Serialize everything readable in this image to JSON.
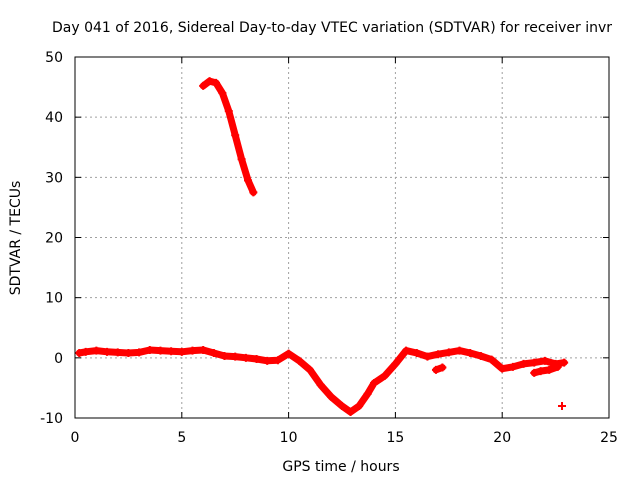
{
  "chart_data": {
    "type": "scatter",
    "title": "Day 041 of 2016, Sidereal Day-to-day VTEC variation (SDTVAR) for receiver invr",
    "xlabel": "GPS time / hours",
    "ylabel": "SDTVAR / TECUs",
    "xlim": [
      0,
      25
    ],
    "ylim": [
      -10,
      50
    ],
    "xticks": [
      0,
      5,
      10,
      15,
      20,
      25
    ],
    "yticks": [
      -10,
      0,
      10,
      20,
      30,
      40,
      50
    ],
    "xtick_labels": [
      "0",
      "5",
      "10",
      "15",
      "20",
      "25"
    ],
    "ytick_labels": [
      "-10",
      "0",
      "10",
      "20",
      "30",
      "40",
      "50"
    ],
    "grid": true,
    "series": [
      {
        "name": "SDTVAR",
        "color": "#ff0000",
        "marker": "plus",
        "segments": [
          {
            "x": [
              6.0,
              6.3,
              6.6,
              6.9,
              7.2,
              7.5,
              7.8,
              8.1,
              8.35
            ],
            "y": [
              45.2,
              46.0,
              45.7,
              44.0,
              41.0,
              37.0,
              33.0,
              29.5,
              27.5
            ]
          },
          {
            "x": [
              0.2,
              0.5,
              1.0,
              1.5,
              2.0,
              2.5,
              3.0,
              3.5,
              4.0,
              4.5,
              5.0,
              5.5,
              6.0,
              6.5,
              7.0,
              7.5,
              8.0,
              8.5,
              9.0,
              9.5,
              10.0,
              10.5,
              11.0,
              11.5,
              12.0,
              12.5,
              12.9,
              13.3,
              13.7,
              14.0,
              14.5,
              15.0,
              15.5,
              16.0,
              16.5,
              17.0,
              17.5,
              18.0,
              18.5,
              19.0,
              19.5,
              20.0,
              20.5,
              21.0,
              21.5,
              22.0,
              22.5,
              22.9
            ],
            "y": [
              0.8,
              1.0,
              1.2,
              1.0,
              0.9,
              0.8,
              0.9,
              1.3,
              1.2,
              1.1,
              1.0,
              1.2,
              1.3,
              0.8,
              0.3,
              0.2,
              0.0,
              -0.2,
              -0.5,
              -0.4,
              0.7,
              -0.5,
              -2.0,
              -4.5,
              -6.5,
              -8.0,
              -9.0,
              -8.0,
              -6.0,
              -4.2,
              -3.0,
              -1.0,
              1.2,
              0.8,
              0.2,
              0.6,
              0.9,
              1.2,
              0.8,
              0.3,
              -0.3,
              -1.8,
              -1.5,
              -1.0,
              -0.8,
              -0.5,
              -1.0,
              -0.8
            ]
          },
          {
            "x": [
              16.9,
              17.2
            ],
            "y": [
              -2.0,
              -1.6
            ]
          },
          {
            "x": [
              21.5,
              21.8,
              22.2,
              22.6
            ],
            "y": [
              -2.5,
              -2.2,
              -2.0,
              -1.5
            ]
          },
          {
            "x": [
              22.8
            ],
            "y": [
              -8.0
            ]
          }
        ]
      }
    ]
  }
}
